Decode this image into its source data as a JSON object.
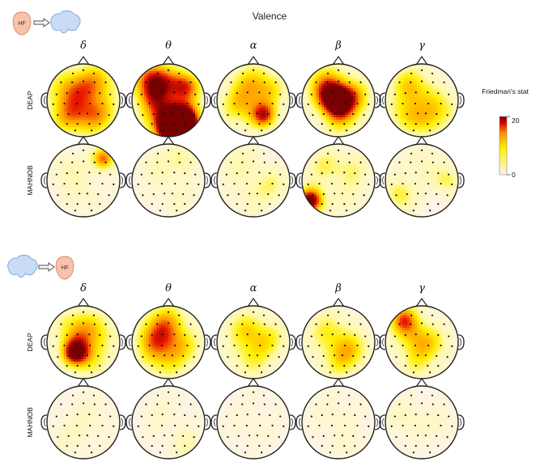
{
  "title": "Valence",
  "bands": [
    "δ",
    "θ",
    "α",
    "β",
    "γ"
  ],
  "colorbar": {
    "label": "Friedman's stat",
    "max_label": "20",
    "min_label": "0"
  },
  "panels": [
    {
      "direction": "hf-to-brain",
      "hf_label": "HF",
      "rows": [
        {
          "label": "DEAP",
          "maps": [
            [
              {
                "u": 0.28,
                "v": 0.35,
                "a": 0.55,
                "s": 0.22
              },
              {
                "u": 0.7,
                "v": 0.25,
                "a": 0.55,
                "s": 0.22
              },
              {
                "u": 0.5,
                "v": 0.75,
                "a": 0.45,
                "s": 0.22
              },
              {
                "u": 0.75,
                "v": 0.7,
                "a": 0.35,
                "s": 0.18
              },
              {
                "u": 0.2,
                "v": 0.75,
                "a": 0.3,
                "s": 0.18
              }
            ],
            [
              {
                "u": 0.3,
                "v": 0.22,
                "a": 0.85,
                "s": 0.22
              },
              {
                "u": 0.75,
                "v": 0.3,
                "a": 0.7,
                "s": 0.16
              },
              {
                "u": 0.3,
                "v": 0.55,
                "a": 0.4,
                "s": 0.2
              },
              {
                "u": 0.7,
                "v": 0.82,
                "a": 1.2,
                "s": 0.2
              },
              {
                "u": 0.5,
                "v": 0.9,
                "a": 0.7,
                "s": 0.2
              }
            ],
            [
              {
                "u": 0.45,
                "v": 0.25,
                "a": 0.45,
                "s": 0.22
              },
              {
                "u": 0.3,
                "v": 0.6,
                "a": 0.45,
                "s": 0.2
              },
              {
                "u": 0.65,
                "v": 0.72,
                "a": 0.7,
                "s": 0.14
              },
              {
                "u": 0.75,
                "v": 0.35,
                "a": 0.35,
                "s": 0.18
              }
            ],
            [
              {
                "u": 0.45,
                "v": 0.5,
                "a": 0.85,
                "s": 0.18
              },
              {
                "u": 0.3,
                "v": 0.25,
                "a": 0.5,
                "s": 0.22
              },
              {
                "u": 0.75,
                "v": 0.45,
                "a": 0.45,
                "s": 0.2
              },
              {
                "u": 0.55,
                "v": 0.8,
                "a": 0.35,
                "s": 0.2
              }
            ],
            [
              {
                "u": 0.35,
                "v": 0.3,
                "a": 0.55,
                "s": 0.2
              },
              {
                "u": 0.25,
                "v": 0.7,
                "a": 0.4,
                "s": 0.18
              },
              {
                "u": 0.75,
                "v": 0.6,
                "a": 0.45,
                "s": 0.2
              },
              {
                "u": 0.55,
                "v": 0.85,
                "a": 0.3,
                "s": 0.18
              }
            ]
          ]
        },
        {
          "label": "MAHNOB",
          "maps": [
            [
              {
                "u": 0.78,
                "v": 0.2,
                "a": 0.75,
                "s": 0.12
              },
              {
                "u": 0.3,
                "v": 0.35,
                "a": 0.22,
                "s": 0.18
              },
              {
                "u": 0.5,
                "v": 0.7,
                "a": 0.15,
                "s": 0.2
              }
            ],
            [
              {
                "u": 0.7,
                "v": 0.2,
                "a": 0.3,
                "s": 0.16
              },
              {
                "u": 0.3,
                "v": 0.3,
                "a": 0.2,
                "s": 0.18
              },
              {
                "u": 0.6,
                "v": 0.7,
                "a": 0.15,
                "s": 0.2
              }
            ],
            [
              {
                "u": 0.3,
                "v": 0.25,
                "a": 0.25,
                "s": 0.2
              },
              {
                "u": 0.75,
                "v": 0.55,
                "a": 0.3,
                "s": 0.18
              },
              {
                "u": 0.45,
                "v": 0.75,
                "a": 0.18,
                "s": 0.2
              }
            ],
            [
              {
                "u": 0.12,
                "v": 0.78,
                "a": 1.0,
                "s": 0.14
              },
              {
                "u": 0.3,
                "v": 0.3,
                "a": 0.35,
                "s": 0.18
              },
              {
                "u": 0.7,
                "v": 0.35,
                "a": 0.3,
                "s": 0.18
              },
              {
                "u": 0.65,
                "v": 0.75,
                "a": 0.2,
                "s": 0.18
              }
            ],
            [
              {
                "u": 0.2,
                "v": 0.7,
                "a": 0.45,
                "s": 0.16
              },
              {
                "u": 0.85,
                "v": 0.5,
                "a": 0.4,
                "s": 0.14
              },
              {
                "u": 0.5,
                "v": 0.25,
                "a": 0.2,
                "s": 0.2
              }
            ]
          ]
        }
      ]
    },
    {
      "direction": "brain-to-hf",
      "hf_label": "HF",
      "rows": [
        {
          "label": "DEAP",
          "maps": [
            [
              {
                "u": 0.38,
                "v": 0.65,
                "a": 0.75,
                "s": 0.14
              },
              {
                "u": 0.35,
                "v": 0.3,
                "a": 0.45,
                "s": 0.22
              },
              {
                "u": 0.7,
                "v": 0.35,
                "a": 0.4,
                "s": 0.2
              },
              {
                "u": 0.6,
                "v": 0.75,
                "a": 0.35,
                "s": 0.2
              }
            ],
            [
              {
                "u": 0.45,
                "v": 0.22,
                "a": 0.55,
                "s": 0.22
              },
              {
                "u": 0.25,
                "v": 0.5,
                "a": 0.45,
                "s": 0.2
              },
              {
                "u": 0.7,
                "v": 0.55,
                "a": 0.4,
                "s": 0.2
              },
              {
                "u": 0.45,
                "v": 0.8,
                "a": 0.35,
                "s": 0.2
              }
            ],
            [
              {
                "u": 0.35,
                "v": 0.3,
                "a": 0.4,
                "s": 0.2
              },
              {
                "u": 0.7,
                "v": 0.45,
                "a": 0.4,
                "s": 0.2
              },
              {
                "u": 0.45,
                "v": 0.75,
                "a": 0.35,
                "s": 0.2
              }
            ],
            [
              {
                "u": 0.35,
                "v": 0.35,
                "a": 0.4,
                "s": 0.22
              },
              {
                "u": 0.7,
                "v": 0.6,
                "a": 0.4,
                "s": 0.2
              },
              {
                "u": 0.5,
                "v": 0.8,
                "a": 0.3,
                "s": 0.2
              }
            ],
            [
              {
                "u": 0.25,
                "v": 0.18,
                "a": 0.65,
                "s": 0.16
              },
              {
                "u": 0.4,
                "v": 0.45,
                "a": 0.4,
                "s": 0.2
              },
              {
                "u": 0.7,
                "v": 0.5,
                "a": 0.3,
                "s": 0.18
              },
              {
                "u": 0.45,
                "v": 0.8,
                "a": 0.3,
                "s": 0.2
              }
            ]
          ]
        },
        {
          "label": "MAHNOB",
          "maps": [
            [
              {
                "u": 0.55,
                "v": 0.45,
                "a": 0.15,
                "s": 0.22
              },
              {
                "u": 0.3,
                "v": 0.75,
                "a": 0.12,
                "s": 0.18
              }
            ],
            [
              {
                "u": 0.75,
                "v": 0.8,
                "a": 0.25,
                "s": 0.14
              },
              {
                "u": 0.4,
                "v": 0.4,
                "a": 0.12,
                "s": 0.22
              }
            ],
            [
              {
                "u": 0.5,
                "v": 0.5,
                "a": 0.08,
                "s": 0.25
              }
            ],
            [
              {
                "u": 0.45,
                "v": 0.4,
                "a": 0.12,
                "s": 0.22
              },
              {
                "u": 0.65,
                "v": 0.8,
                "a": 0.1,
                "s": 0.18
              }
            ],
            [
              {
                "u": 0.3,
                "v": 0.45,
                "a": 0.18,
                "s": 0.18
              },
              {
                "u": 0.75,
                "v": 0.55,
                "a": 0.12,
                "s": 0.18
              }
            ]
          ]
        }
      ]
    }
  ]
}
